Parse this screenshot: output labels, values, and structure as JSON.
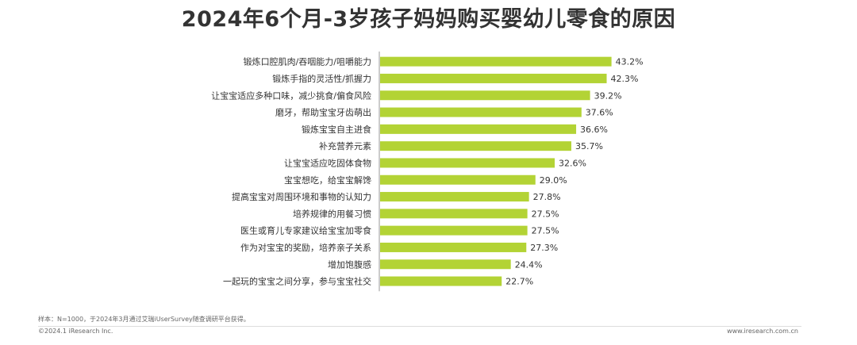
{
  "title": "2024年6个月-3岁孩子妈妈购买婴幼儿零食的原因",
  "footnote": "样本：N=1000，于2024年3月通过艾瑞iUserSurvey随查调研平台获得。",
  "copyright": "©2024.1 iResearch Inc.",
  "website": "www.iresearch.com.cn",
  "colors": {
    "bar": "#b3d335",
    "axis": "#999999",
    "label": "#333333"
  },
  "chart_data": {
    "type": "bar",
    "orientation": "horizontal",
    "value_suffix": "%",
    "categories": [
      "锻炼口腔肌肉/吞咽能力/咀嚼能力",
      "锻炼手指的灵活性/抓握力",
      "让宝宝适应多种口味，减少挑食/偏食风险",
      "磨牙，帮助宝宝牙齿萌出",
      "锻炼宝宝自主进食",
      "补充营养元素",
      "让宝宝适应吃固体食物",
      "宝宝想吃，给宝宝解馋",
      "提高宝宝对周围环境和事物的认知力",
      "培养规律的用餐习惯",
      "医生或育儿专家建议给宝宝加零食",
      "作为对宝宝的奖励，培养亲子关系",
      "增加饱腹感",
      "一起玩的宝宝之间分享，参与宝宝社交"
    ],
    "values": [
      43.2,
      42.3,
      39.2,
      37.6,
      36.6,
      35.7,
      32.6,
      29.0,
      27.8,
      27.5,
      27.5,
      27.3,
      24.4,
      22.7
    ],
    "value_labels": [
      "43.2%",
      "42.3%",
      "39.2%",
      "37.6%",
      "36.6%",
      "35.7%",
      "32.6%",
      "29.0%",
      "27.8%",
      "27.5%",
      "27.5%",
      "27.3%",
      "24.4%",
      "22.7%"
    ],
    "xlim": [
      0,
      50
    ],
    "grid": false,
    "legend": "none"
  }
}
